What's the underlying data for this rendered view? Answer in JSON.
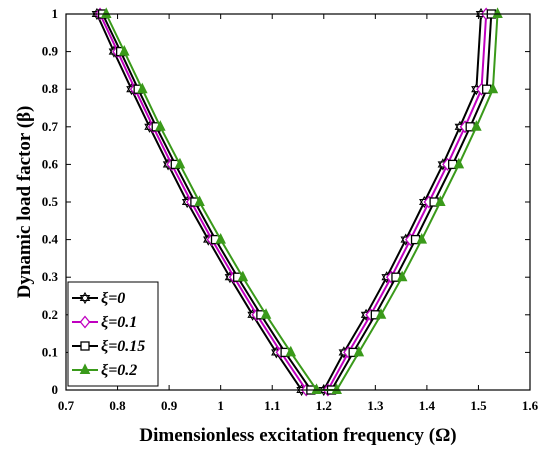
{
  "chart_data": {
    "type": "line",
    "xlabel": "Dimensionless excitation frequency (Ω)",
    "ylabel": "Dynamic load factor (β)",
    "xlim": [
      0.7,
      1.6
    ],
    "ylim": [
      0,
      1
    ],
    "xticks": [
      "0.7",
      "0.8",
      "0.9",
      "1",
      "1.1",
      "1.2",
      "1.3",
      "1.4",
      "1.5",
      "1.6"
    ],
    "yticks": [
      "0",
      "0.1",
      "0.2",
      "0.3",
      "0.4",
      "0.5",
      "0.6",
      "0.7",
      "0.8",
      "0.9",
      "1"
    ],
    "grid": false,
    "legend_position": "bottom-left",
    "series": [
      {
        "name": "ξ=0",
        "color": "#000000",
        "marker": "hexagram",
        "x": [
          0.76,
          0.793,
          0.827,
          0.862,
          0.898,
          0.935,
          0.976,
          1.018,
          1.062,
          1.108,
          1.157,
          1.2,
          1.239,
          1.282,
          1.322,
          1.359,
          1.395,
          1.431,
          1.464,
          1.496,
          1.505
        ],
        "y": [
          1,
          0.9,
          0.8,
          0.7,
          0.6,
          0.5,
          0.4,
          0.3,
          0.2,
          0.1,
          0,
          0,
          0.1,
          0.2,
          0.3,
          0.4,
          0.5,
          0.6,
          0.7,
          0.8,
          1
        ]
      },
      {
        "name": "ξ=0.1",
        "color": "#c000c0",
        "marker": "diamond",
        "x": [
          0.766,
          0.8,
          0.834,
          0.869,
          0.905,
          0.943,
          0.983,
          1.026,
          1.07,
          1.117,
          1.166,
          1.208,
          1.248,
          1.291,
          1.331,
          1.368,
          1.404,
          1.44,
          1.474,
          1.506,
          1.515
        ],
        "y": [
          1,
          0.9,
          0.8,
          0.7,
          0.6,
          0.5,
          0.4,
          0.3,
          0.2,
          0.1,
          0,
          0,
          0.1,
          0.2,
          0.3,
          0.4,
          0.5,
          0.6,
          0.7,
          0.8,
          1
        ]
      },
      {
        "name": "ξ=0.15",
        "color": "#000000",
        "marker": "square",
        "x": [
          0.771,
          0.806,
          0.84,
          0.875,
          0.912,
          0.95,
          0.99,
          1.033,
          1.078,
          1.125,
          1.175,
          1.215,
          1.257,
          1.3,
          1.34,
          1.378,
          1.414,
          1.45,
          1.484,
          1.516,
          1.525
        ],
        "y": [
          1,
          0.9,
          0.8,
          0.7,
          0.6,
          0.5,
          0.4,
          0.3,
          0.2,
          0.1,
          0,
          0,
          0.1,
          0.2,
          0.3,
          0.4,
          0.5,
          0.6,
          0.7,
          0.8,
          1
        ]
      },
      {
        "name": "ξ=0.2",
        "color": "#3a9a1a",
        "marker": "triangle",
        "x": [
          0.778,
          0.813,
          0.848,
          0.883,
          0.921,
          0.959,
          1.0,
          1.043,
          1.088,
          1.136,
          1.186,
          1.225,
          1.268,
          1.311,
          1.352,
          1.39,
          1.426,
          1.462,
          1.496,
          1.528,
          1.537
        ],
        "y": [
          1,
          0.9,
          0.8,
          0.7,
          0.6,
          0.5,
          0.4,
          0.3,
          0.2,
          0.1,
          0,
          0,
          0.1,
          0.2,
          0.3,
          0.4,
          0.5,
          0.6,
          0.7,
          0.8,
          1
        ]
      }
    ]
  }
}
